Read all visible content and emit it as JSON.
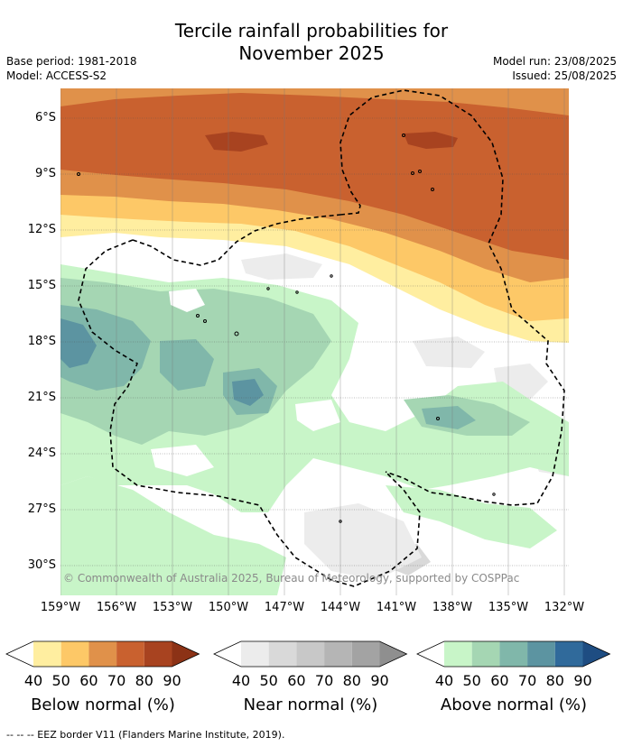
{
  "title_line1": "Tercile rainfall probabilities for",
  "title_line2": "November 2025",
  "base_period": "Base period: 1981-2018",
  "model": "Model: ACCESS-S2",
  "model_run": "Model run: 23/08/2025",
  "issued": "Issued: 25/08/2025",
  "copyright": "© Commonwealth of Australia 2025, Bureau of Meteorology, supported by COSPPac",
  "eez_note": "-- -- -- EEZ border V11 (Flanders Marine Institute, 2019).",
  "lat_labels": [
    "6°S",
    "9°S",
    "12°S",
    "15°S",
    "18°S",
    "21°S",
    "24°S",
    "27°S",
    "30°S"
  ],
  "lon_labels": [
    "159°W",
    "156°W",
    "153°W",
    "150°W",
    "147°W",
    "144°W",
    "141°W",
    "138°W",
    "135°W",
    "132°W"
  ],
  "colorbars": [
    {
      "title": "Below normal (%)",
      "ticks": [
        "40",
        "50",
        "60",
        "70",
        "80",
        "90"
      ],
      "colors": [
        "#ffffff",
        "#ffeea0",
        "#fdc867",
        "#e0914a",
        "#c9612f",
        "#a84320",
        "#8c3216"
      ]
    },
    {
      "title": "Near normal (%)",
      "ticks": [
        "40",
        "50",
        "60",
        "70",
        "80",
        "90"
      ],
      "colors": [
        "#ffffff",
        "#ececec",
        "#d9d9d9",
        "#c8c8c8",
        "#b5b5b5",
        "#a3a3a3",
        "#8f8f8f"
      ]
    },
    {
      "title": "Above normal (%)",
      "ticks": [
        "40",
        "50",
        "60",
        "70",
        "80",
        "90"
      ],
      "colors": [
        "#ffffff",
        "#c8f5c8",
        "#a5d6b3",
        "#80b7aa",
        "#5c94a1",
        "#306a9b",
        "#1e4d82"
      ]
    }
  ],
  "map_colors": {
    "below_40": "#ffeea0",
    "below_50": "#fdc867",
    "below_60": "#e0914a",
    "below_70": "#c9612f",
    "below_80": "#a84320",
    "near_40": "#ececec",
    "near_50": "#d9d9d9",
    "above_40": "#c8f5c8",
    "above_50": "#a5d6b3",
    "above_60": "#80b7aa",
    "above_70": "#5c94a1"
  }
}
